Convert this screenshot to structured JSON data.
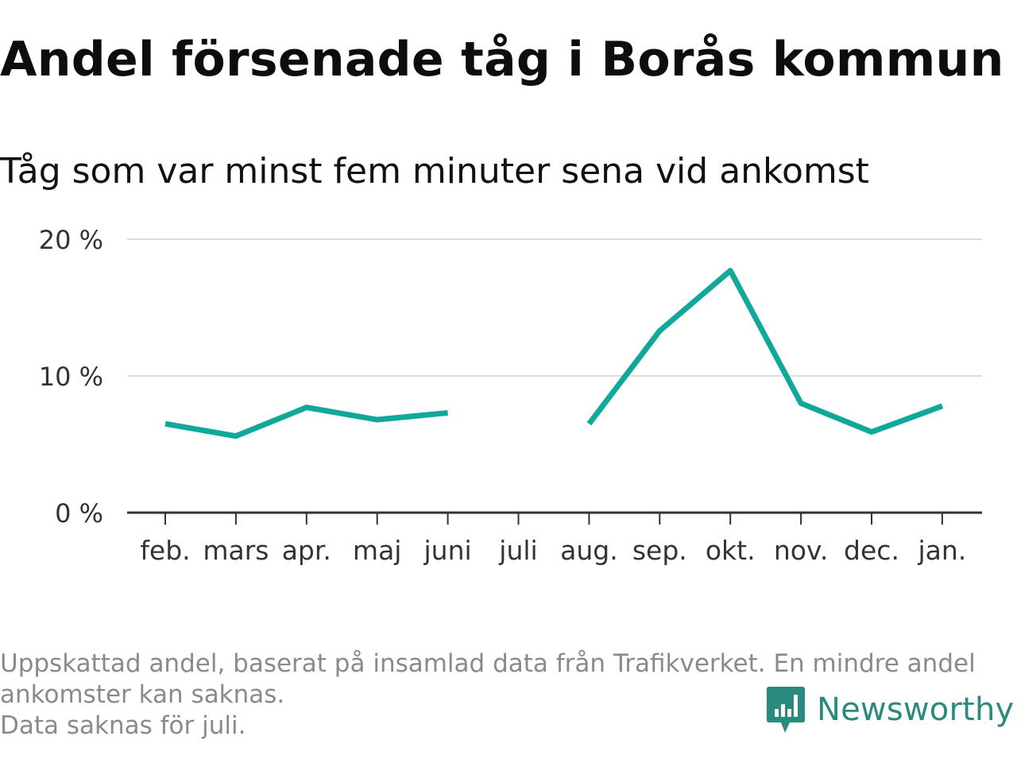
{
  "title": "Andel försenade tåg i Borås kommun",
  "subtitle": "Tåg som var minst fem minuter sena vid ankomst",
  "chart_data": {
    "type": "line",
    "categories": [
      "feb.",
      "mars",
      "apr.",
      "maj",
      "juni",
      "juli",
      "aug.",
      "sep.",
      "okt.",
      "nov.",
      "dec.",
      "jan."
    ],
    "series": [
      {
        "values": [
          6.5,
          5.6,
          7.7,
          6.8,
          7.3,
          null,
          6.5,
          13.3,
          17.7,
          8.0,
          5.9,
          7.8
        ]
      }
    ],
    "ylim": [
      0,
      20
    ],
    "yticks": [
      0,
      10,
      20
    ],
    "ytick_labels": [
      "0 %",
      "10 %",
      "20 %"
    ],
    "xlabel": "",
    "ylabel": "",
    "grid": true,
    "line_color": "#10a89a"
  },
  "notes": [
    "Uppskattad andel, baserat på insamlad data från Trafikverket. En mindre andel",
    "ankomster kan saknas.",
    "Data saknas för juli."
  ],
  "brand": {
    "name": "Newsworthy",
    "icon": "newsworthy-logo-icon",
    "color": "#2a8a7e"
  }
}
